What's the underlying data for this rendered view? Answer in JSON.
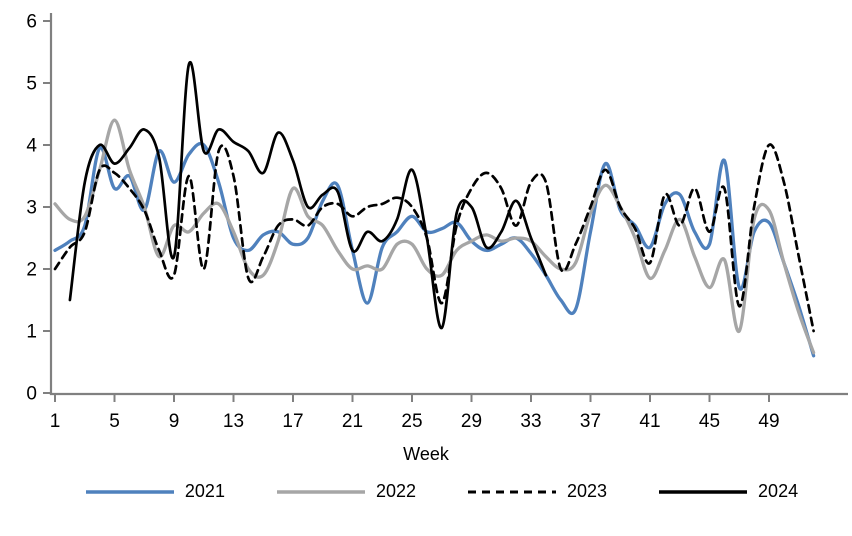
{
  "chart_data": {
    "type": "line",
    "title": "",
    "xlabel": "Week",
    "ylabel": "",
    "x_ticks": [
      1,
      5,
      9,
      13,
      17,
      21,
      25,
      29,
      33,
      37,
      41,
      45,
      49
    ],
    "y_ticks": [
      0,
      1,
      2,
      3,
      4,
      5,
      6
    ],
    "ylim": [
      0,
      6
    ],
    "xlim": [
      1,
      53.5
    ],
    "weeks_total": 52,
    "grid": false,
    "legend_position": "bottom",
    "axis_color": "#808080",
    "text_color": "#000000",
    "series": [
      {
        "name": "2021",
        "color": "#4F81BD",
        "style": "solid",
        "values": [
          2.3,
          2.45,
          2.7,
          3.95,
          3.3,
          3.5,
          2.95,
          3.9,
          3.4,
          3.85,
          4.0,
          3.4,
          2.5,
          2.3,
          2.55,
          2.6,
          2.4,
          2.5,
          3.1,
          3.35,
          2.3,
          1.45,
          2.35,
          2.6,
          2.85,
          2.6,
          2.65,
          2.75,
          2.45,
          2.3,
          2.4,
          2.5,
          2.25,
          1.9,
          1.5,
          1.35,
          2.6,
          3.7,
          2.95,
          2.7,
          2.35,
          3.05,
          3.2,
          2.6,
          2.4,
          3.75,
          1.7,
          2.6,
          2.75,
          2.1,
          1.4,
          0.6
        ]
      },
      {
        "name": "2022",
        "color": "#A6A6A6",
        "style": "solid",
        "values": [
          3.05,
          2.8,
          2.85,
          3.6,
          4.4,
          3.6,
          3.0,
          2.2,
          2.7,
          2.6,
          2.9,
          3.05,
          2.6,
          2.0,
          1.9,
          2.45,
          3.3,
          2.85,
          2.7,
          2.3,
          2.0,
          2.05,
          2.0,
          2.4,
          2.4,
          2.0,
          1.9,
          2.3,
          2.45,
          2.55,
          2.45,
          2.5,
          2.45,
          2.2,
          2.0,
          2.1,
          2.9,
          3.35,
          3.0,
          2.5,
          1.85,
          2.3,
          2.8,
          2.2,
          1.7,
          2.15,
          1.0,
          2.8,
          2.95,
          2.1,
          1.3,
          0.65
        ]
      },
      {
        "name": "2023",
        "color": "#000000",
        "style": "dashed",
        "values": [
          2.0,
          2.35,
          2.6,
          3.6,
          3.55,
          3.3,
          2.95,
          2.3,
          1.9,
          3.5,
          2.0,
          3.9,
          3.5,
          1.85,
          2.2,
          2.7,
          2.8,
          2.7,
          3.0,
          3.05,
          2.85,
          3.0,
          3.05,
          3.15,
          3.0,
          2.5,
          1.45,
          2.7,
          3.3,
          3.55,
          3.3,
          2.7,
          3.4,
          3.4,
          2.0,
          2.4,
          3.0,
          3.6,
          3.0,
          2.65,
          2.1,
          3.2,
          2.7,
          3.3,
          2.6,
          3.3,
          1.4,
          3.0,
          4.0,
          3.4,
          2.2,
          1.0
        ]
      },
      {
        "name": "2024",
        "color": "#000000",
        "style": "solid",
        "values": [
          null,
          1.5,
          3.4,
          4.0,
          3.7,
          3.95,
          4.25,
          3.8,
          2.2,
          5.3,
          3.9,
          4.25,
          4.05,
          3.9,
          3.55,
          4.2,
          3.75,
          3.0,
          3.2,
          3.25,
          2.3,
          2.6,
          2.45,
          2.8,
          3.6,
          2.5,
          1.05,
          2.9,
          3.0,
          2.35,
          2.6,
          3.1,
          2.5,
          1.9,
          null,
          null,
          null,
          null,
          null,
          null,
          null,
          null,
          null,
          null,
          null,
          null,
          null,
          null,
          null,
          null,
          null,
          null
        ]
      }
    ]
  }
}
